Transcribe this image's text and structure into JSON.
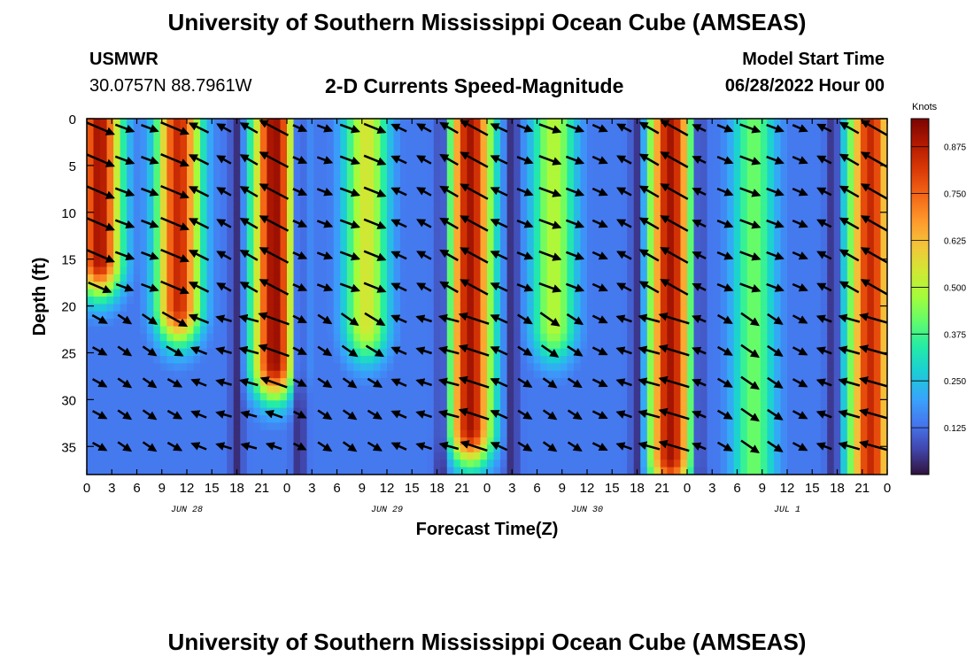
{
  "header": {
    "title": "University of Southern Mississippi Ocean Cube (AMSEAS)",
    "station_name": "USMWR",
    "coordinates": "30.0757N  88.7961W",
    "subtitle": "2-D Currents Speed-Magnitude",
    "model_start_label": "Model Start Time",
    "model_start_value": "06/28/2022 Hour 00"
  },
  "footer": {
    "title": "University of Southern Mississippi Ocean Cube (AMSEAS)"
  },
  "chart_data": {
    "type": "heatmap",
    "title": "2-D Currents Speed-Magnitude",
    "xlabel": "Forecast Time(Z)",
    "ylabel": "Depth (ft)",
    "x_range_hours": [
      0,
      96
    ],
    "y_range_ft": [
      0,
      38
    ],
    "y_inverted": true,
    "x_tick_labels": [
      "0",
      "3",
      "6",
      "9",
      "12",
      "15",
      "18",
      "21",
      "0",
      "3",
      "6",
      "9",
      "12",
      "15",
      "18",
      "21",
      "0",
      "3",
      "6",
      "9",
      "12",
      "15",
      "18",
      "21",
      "0",
      "3",
      "6",
      "9",
      "12",
      "15",
      "18",
      "21",
      "0"
    ],
    "y_ticks": [
      0,
      5,
      10,
      15,
      20,
      25,
      30,
      35
    ],
    "day_labels": [
      {
        "label": "JUN 28",
        "hour": 12
      },
      {
        "label": "JUN 29",
        "hour": 36
      },
      {
        "label": "JUN 30",
        "hour": 60
      },
      {
        "label": "JUL 1",
        "hour": 84
      }
    ],
    "colorbar": {
      "units": "Knots",
      "range": [
        0,
        0.95
      ],
      "tick_values": [
        0.125,
        0.25,
        0.375,
        0.5,
        0.625,
        0.75,
        0.875
      ],
      "tick_labels": [
        "0.125",
        "0.250",
        "0.375",
        "0.500",
        "0.625",
        "0.750",
        "0.875"
      ]
    },
    "speed_bands": [
      {
        "center_hour": 1.5,
        "peak_knots": 0.9,
        "extends_to_ft": 15
      },
      {
        "center_hour": 11,
        "peak_knots": 0.85,
        "extends_to_ft": 20
      },
      {
        "center_hour": 22.5,
        "peak_knots": 0.92,
        "extends_to_ft": 26
      },
      {
        "center_hour": 33.5,
        "peak_knots": 0.55,
        "extends_to_ft": 22
      },
      {
        "center_hour": 46,
        "peak_knots": 0.9,
        "extends_to_ft": 33
      },
      {
        "center_hour": 56,
        "peak_knots": 0.5,
        "extends_to_ft": 22
      },
      {
        "center_hour": 70,
        "peak_knots": 0.9,
        "extends_to_ft": 36
      },
      {
        "center_hour": 80,
        "peak_knots": 0.42,
        "extends_to_ft": 38
      },
      {
        "center_hour": 94,
        "peak_knots": 0.85,
        "extends_to_ft": 38
      }
    ],
    "vectors_note": "black arrows show current direction at each time/depth grid point"
  }
}
